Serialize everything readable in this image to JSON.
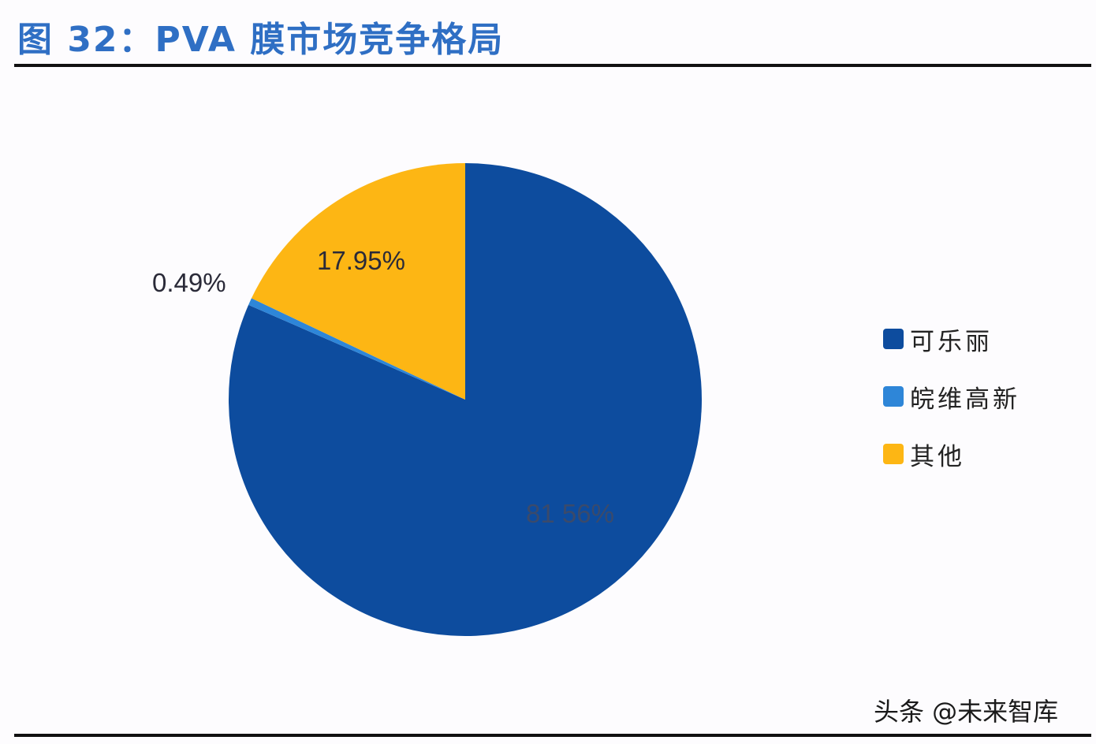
{
  "title": "图 32：PVA 膜市场竞争格局",
  "watermark": "头条 @未来智库",
  "chart_data": {
    "type": "pie",
    "title": "图 32：PVA 膜市场竞争格局",
    "start_angle": "12 o'clock",
    "direction": "clockwise",
    "categories": [
      "可乐丽",
      "皖维高新",
      "其他"
    ],
    "values": [
      81.56,
      0.49,
      17.95
    ],
    "labels": [
      "81.56%",
      "0.49%",
      "17.95%"
    ],
    "colors": [
      "#0d4c9e",
      "#2e86d8",
      "#fdb614"
    ],
    "legend_position": "right"
  },
  "labels": {
    "kuraray": "81 56%",
    "wanwei": "0.49%",
    "other": "17.95%"
  },
  "legend": [
    {
      "label": "可乐丽",
      "color": "#0d4c9e"
    },
    {
      "label": "皖维高新",
      "color": "#2e86d8"
    },
    {
      "label": "其他",
      "color": "#fdb614"
    }
  ]
}
